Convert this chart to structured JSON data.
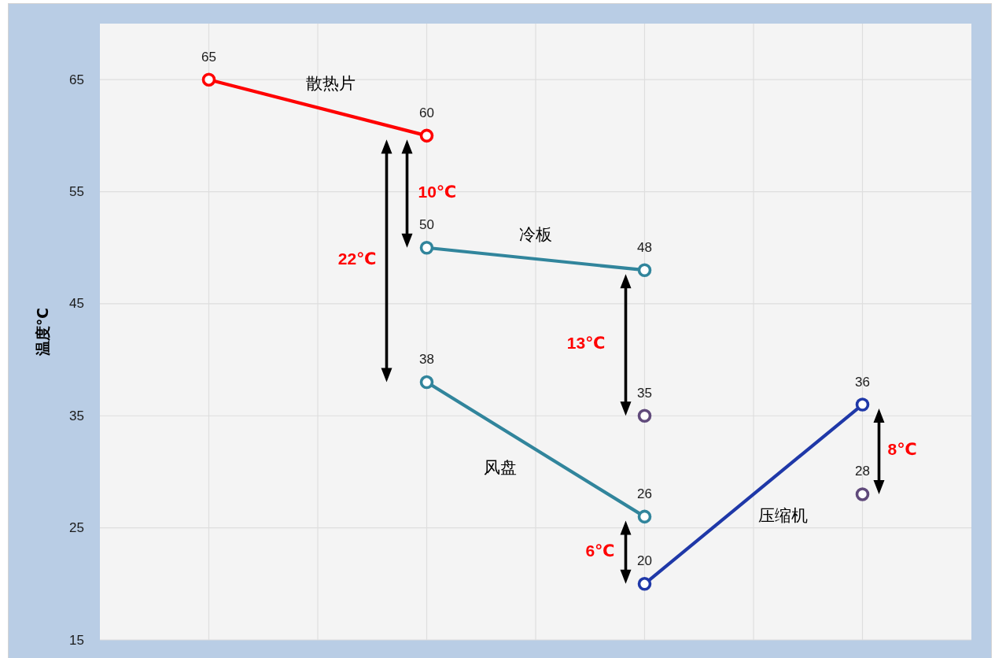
{
  "chart_data": {
    "type": "line",
    "ylabel": "温度℃",
    "categories": [
      null,
      null,
      null,
      null
    ],
    "series": [
      {
        "name": "散热片",
        "color": "#ff0000",
        "values": [
          65,
          60,
          null,
          null
        ]
      },
      {
        "name": "冷板",
        "color": "#31859c",
        "values": [
          null,
          50,
          48,
          null
        ]
      },
      {
        "name": "风盘",
        "color": "#31859c",
        "values": [
          null,
          38,
          26,
          null
        ]
      },
      {
        "name": "压缩机",
        "color": "#1f38a8",
        "values": [
          null,
          null,
          20,
          36
        ]
      },
      {
        "type": "scatter",
        "color": "#604a7b",
        "values": [
          null,
          null,
          35,
          28
        ]
      }
    ],
    "ylim": [
      15,
      70
    ],
    "yticks": [
      15,
      25,
      35,
      45,
      55,
      65
    ],
    "grid": true,
    "marker": "circle",
    "data_labels": true,
    "annotations": [
      "10℃",
      "22℃",
      "13℃",
      "6℃",
      "8℃"
    ]
  }
}
